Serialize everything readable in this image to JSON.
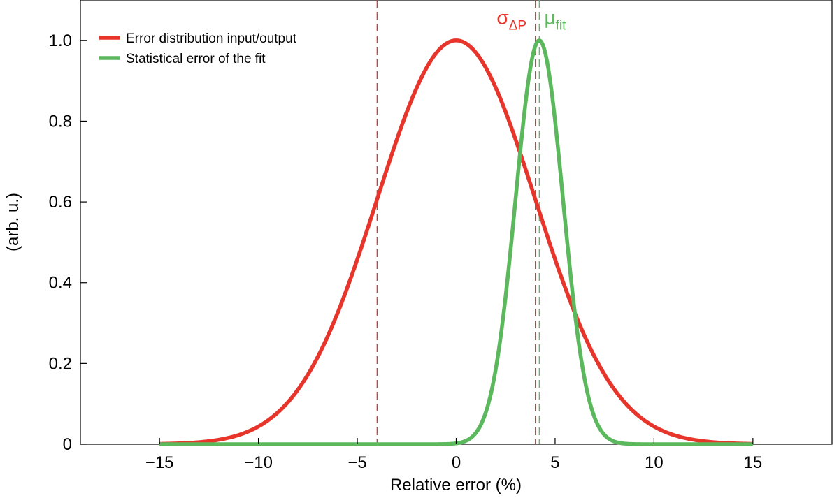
{
  "chart_data": {
    "type": "line",
    "title": "",
    "xlabel": "Relative error (%)",
    "ylabel": "(arb. u.)",
    "xlim": [
      -19,
      19
    ],
    "ylim": [
      0,
      1.1
    ],
    "xticks": [
      -15,
      -10,
      -5,
      0,
      5,
      10,
      15
    ],
    "xtick_labels": [
      "−15",
      "−10",
      "−5",
      "0",
      "5",
      "10",
      "15"
    ],
    "yticks": [
      0,
      0.2,
      0.4,
      0.6,
      0.8,
      1.0
    ],
    "ytick_labels": [
      "0",
      "0.2",
      "0.4",
      "0.6",
      "0.8",
      "1.0"
    ],
    "grid": false,
    "legend_position": "top-left",
    "series": [
      {
        "name": "Error distribution input/output",
        "color": "#e8352b",
        "function": "gaussian",
        "mean": 0,
        "sigma": 4,
        "amplitude": 1.0,
        "x_range": [
          -15,
          15
        ]
      },
      {
        "name": "Statistical error of the fit",
        "color": "#5cb85c",
        "function": "gaussian",
        "mean": 4.2,
        "sigma": 1.2,
        "amplitude": 1.0,
        "x_range": [
          -15,
          15
        ]
      }
    ],
    "vertical_lines": [
      {
        "x": -4,
        "color": "#e8352b",
        "style": "dashed"
      },
      {
        "x": 4,
        "color": "#e8352b",
        "style": "dashed"
      },
      {
        "x": 4.2,
        "color": "#5cb85c",
        "style": "dashed"
      }
    ],
    "annotations": [
      {
        "main": "σ",
        "sub": "ΔP",
        "color": "#e8352b",
        "x": 2.8,
        "y": 1.04
      },
      {
        "main": "μ",
        "sub": "fit",
        "color": "#5cb85c",
        "x": 5.0,
        "y": 1.04
      }
    ]
  }
}
